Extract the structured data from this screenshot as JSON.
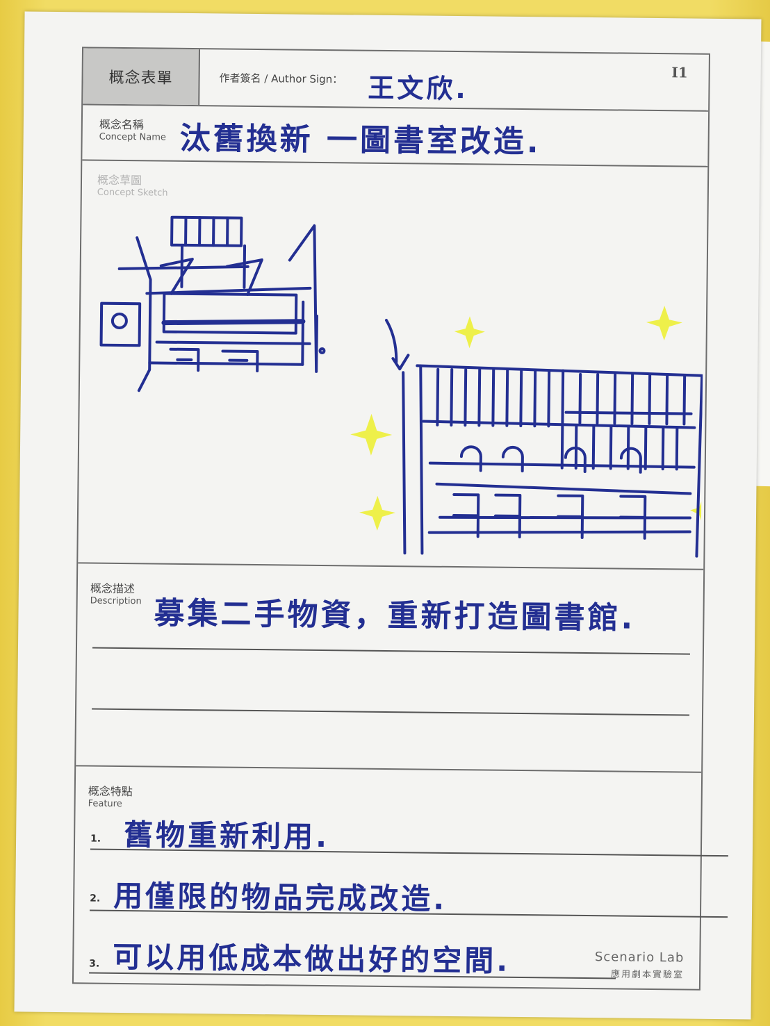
{
  "header": {
    "form_title": "概念表單",
    "author_label": "作者簽名 / Author Sign：",
    "author_name": "王文欣.",
    "form_id": "I1"
  },
  "concept_name": {
    "label_zh": "概念名稱",
    "label_en": "Concept Name",
    "value": "汰舊換新 一圖書室改造."
  },
  "concept_sketch": {
    "label_zh": "概念草圖",
    "label_en": "Concept Sketch"
  },
  "description": {
    "label_zh": "概念描述",
    "label_en": "Description",
    "value": "募集二手物資，重新打造圖書館."
  },
  "feature": {
    "label_zh": "概念特點",
    "label_en": "Feature",
    "items": [
      {
        "num": "1.",
        "text": "舊物重新利用."
      },
      {
        "num": "2.",
        "text": "用僅限的物品完成改造."
      },
      {
        "num": "3.",
        "text": "可以用低成本做出好的空間."
      }
    ]
  },
  "brand": {
    "name": "Scenario Lab",
    "name_zh": "應用劇本實驗室"
  },
  "colors": {
    "ink": "#232f92",
    "highlight": "#eef04a",
    "paper": "#f4f4f2",
    "frame": "#6d6d6d"
  }
}
